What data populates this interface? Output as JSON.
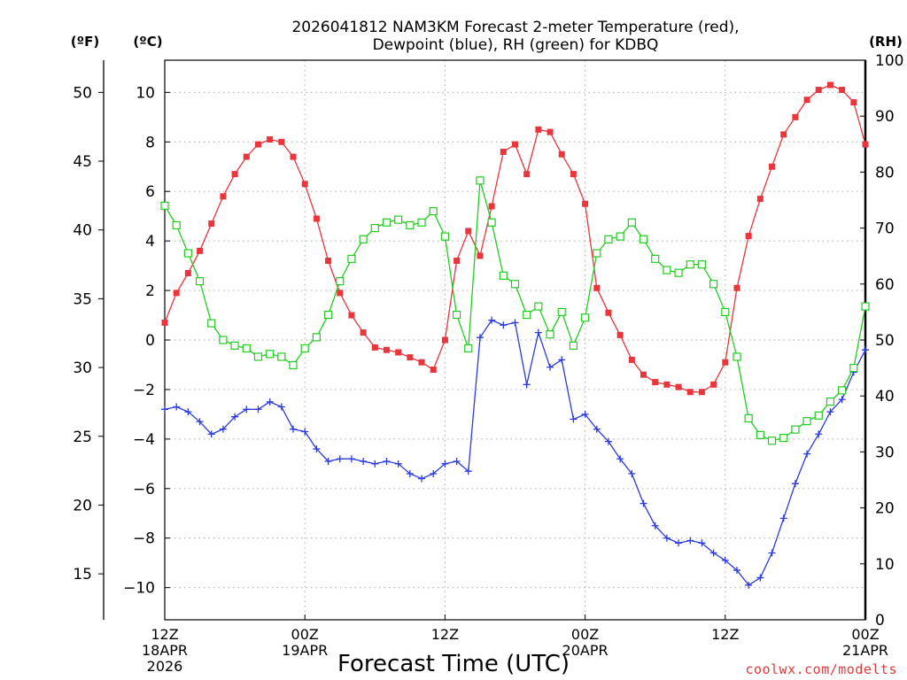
{
  "chart_data": {
    "type": "line",
    "title_line1": "2026041812 NAM3KM Forecast 2-meter Temperature (red),",
    "title_line2": "Dewpoint (blue), RH (green) for KDBQ",
    "xlabel": "Forecast Time (UTC)",
    "unit_labels": {
      "fahrenheit": "(ºF)",
      "celsius": "(ºC)",
      "rh": "(RH)"
    },
    "x_range_hours": [
      0,
      60
    ],
    "y_celsius_range": [
      -11.3,
      11.3
    ],
    "y_rh_range": [
      0,
      100
    ],
    "x_ticks": [
      {
        "hour": 0,
        "line1": "12Z",
        "line2": "18APR",
        "line3": "2026"
      },
      {
        "hour": 12,
        "line1": "00Z",
        "line2": "19APR",
        "line3": ""
      },
      {
        "hour": 24,
        "line1": "12Z",
        "line2": "",
        "line3": ""
      },
      {
        "hour": 36,
        "line1": "00Z",
        "line2": "20APR",
        "line3": ""
      },
      {
        "hour": 48,
        "line1": "12Z",
        "line2": "",
        "line3": ""
      },
      {
        "hour": 60,
        "line1": "00Z",
        "line2": "21APR",
        "line3": ""
      }
    ],
    "celsius_ticks": [
      {
        "value": 10,
        "label": "10"
      },
      {
        "value": 8,
        "label": "8"
      },
      {
        "value": 6,
        "label": "6"
      },
      {
        "value": 4,
        "label": "4"
      },
      {
        "value": 2,
        "label": "2"
      },
      {
        "value": 0,
        "label": "0"
      },
      {
        "value": -2,
        "label": "−2"
      },
      {
        "value": -4,
        "label": "−4"
      },
      {
        "value": -6,
        "label": "−6"
      },
      {
        "value": -8,
        "label": "−8"
      },
      {
        "value": -10,
        "label": "−10"
      }
    ],
    "fahrenheit_ticks": [
      {
        "value": 50,
        "label": "50"
      },
      {
        "value": 45,
        "label": "45"
      },
      {
        "value": 40,
        "label": "40"
      },
      {
        "value": 35,
        "label": "35"
      },
      {
        "value": 30,
        "label": "30"
      },
      {
        "value": 25,
        "label": "25"
      },
      {
        "value": 20,
        "label": "20"
      },
      {
        "value": 15,
        "label": "15"
      }
    ],
    "rh_ticks": [
      {
        "value": 100,
        "label": "100"
      },
      {
        "value": 90,
        "label": "90"
      },
      {
        "value": 80,
        "label": "80"
      },
      {
        "value": 70,
        "label": "70"
      },
      {
        "value": 60,
        "label": "60"
      },
      {
        "value": 50,
        "label": "50"
      },
      {
        "value": 40,
        "label": "40"
      },
      {
        "value": 30,
        "label": "30"
      },
      {
        "value": 20,
        "label": "20"
      },
      {
        "value": 10,
        "label": "10"
      },
      {
        "value": 0,
        "label": "0"
      }
    ],
    "series": [
      {
        "name": "Temperature",
        "axis": "celsius",
        "color": "#e8363c",
        "marker": "filled-square",
        "values": [
          0.7,
          1.9,
          2.7,
          3.6,
          4.7,
          5.8,
          6.7,
          7.4,
          7.9,
          8.1,
          8.0,
          7.4,
          6.3,
          4.9,
          3.2,
          1.9,
          1.0,
          0.3,
          -0.3,
          -0.4,
          -0.5,
          -0.7,
          -0.9,
          -1.2,
          0.0,
          3.2,
          4.4,
          3.4,
          5.4,
          7.6,
          7.9,
          6.7,
          8.5,
          8.4,
          7.5,
          6.7,
          5.5,
          2.1,
          1.1,
          0.2,
          -0.8,
          -1.4,
          -1.7,
          -1.8,
          -1.9,
          -2.1,
          -2.1,
          -1.8,
          -0.9,
          2.1,
          4.2,
          5.7,
          7.0,
          8.3,
          9.0,
          9.7,
          10.1,
          10.3,
          10.1,
          9.6,
          7.9
        ]
      },
      {
        "name": "Dewpoint",
        "axis": "celsius",
        "color": "#2b3bdc",
        "marker": "plus",
        "values": [
          -2.8,
          -2.7,
          -2.9,
          -3.3,
          -3.8,
          -3.6,
          -3.1,
          -2.8,
          -2.8,
          -2.5,
          -2.7,
          -3.6,
          -3.7,
          -4.4,
          -4.9,
          -4.8,
          -4.8,
          -4.9,
          -5.0,
          -4.9,
          -5.0,
          -5.4,
          -5.6,
          -5.4,
          -5.0,
          -4.9,
          -5.3,
          0.1,
          0.8,
          0.6,
          0.7,
          -1.8,
          0.3,
          -1.1,
          -0.8,
          -3.2,
          -3.0,
          -3.6,
          -4.1,
          -4.8,
          -5.4,
          -6.6,
          -7.5,
          -8.0,
          -8.2,
          -8.1,
          -8.2,
          -8.6,
          -8.9,
          -9.3,
          -9.9,
          -9.6,
          -8.6,
          -7.2,
          -5.8,
          -4.6,
          -3.8,
          -2.9,
          -2.4,
          -1.3,
          -0.4
        ]
      },
      {
        "name": "RH",
        "axis": "rh",
        "color": "#22cc22",
        "marker": "open-square",
        "values": [
          74,
          70.5,
          65.5,
          60.5,
          53,
          50,
          49,
          48.5,
          47,
          47.5,
          47,
          45.5,
          48.5,
          50.5,
          54.5,
          60.5,
          64.5,
          68,
          70,
          71,
          71.5,
          70.5,
          71,
          73,
          68.5,
          54.5,
          48.5,
          78.5,
          71,
          61.5,
          60,
          54.5,
          56,
          51,
          55,
          49,
          54,
          65.5,
          68,
          68.5,
          71,
          68,
          64.5,
          62.5,
          62,
          63.5,
          63.5,
          60,
          55,
          47,
          36,
          33,
          32,
          32.5,
          34,
          35.5,
          36.5,
          39,
          41,
          45,
          56
        ]
      }
    ],
    "watermark": "coolwx.com/modelts"
  }
}
